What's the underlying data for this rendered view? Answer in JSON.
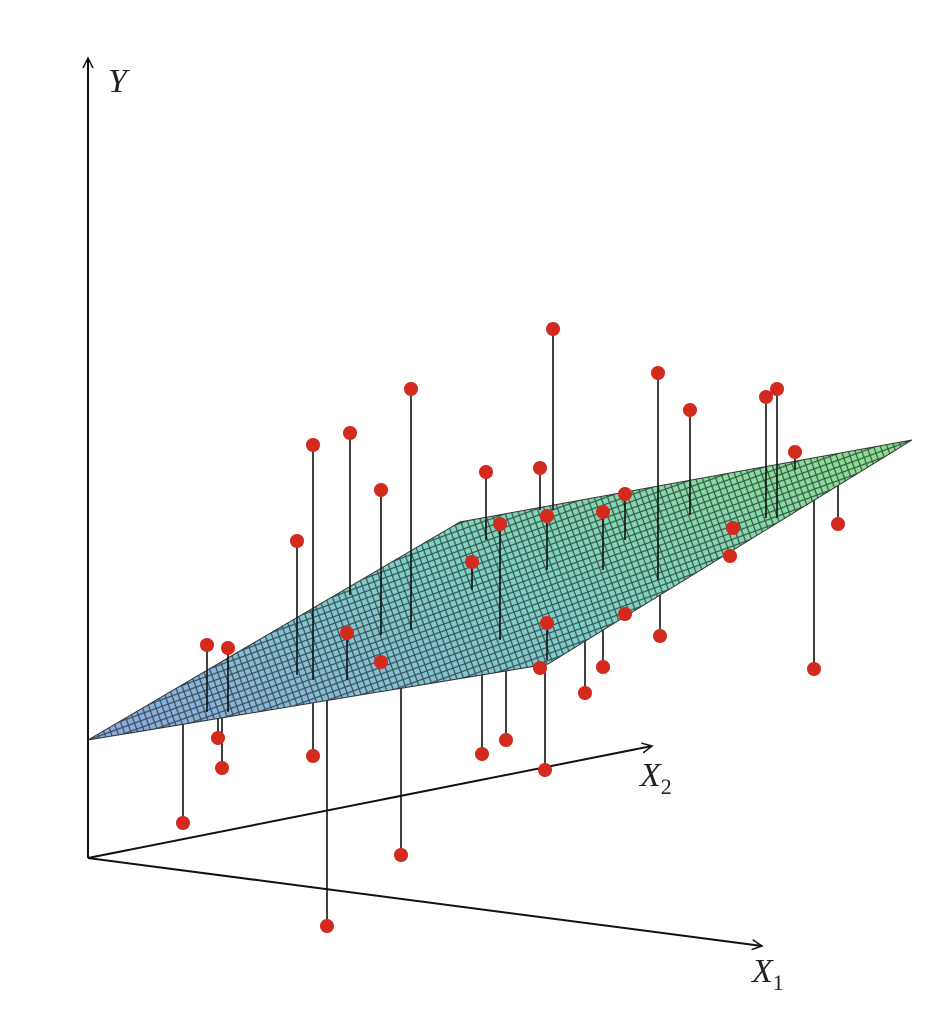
{
  "axes": {
    "y": "Y",
    "x2": {
      "letter": "X",
      "sub": "2"
    },
    "x1": {
      "letter": "X",
      "sub": "1"
    }
  }
}
